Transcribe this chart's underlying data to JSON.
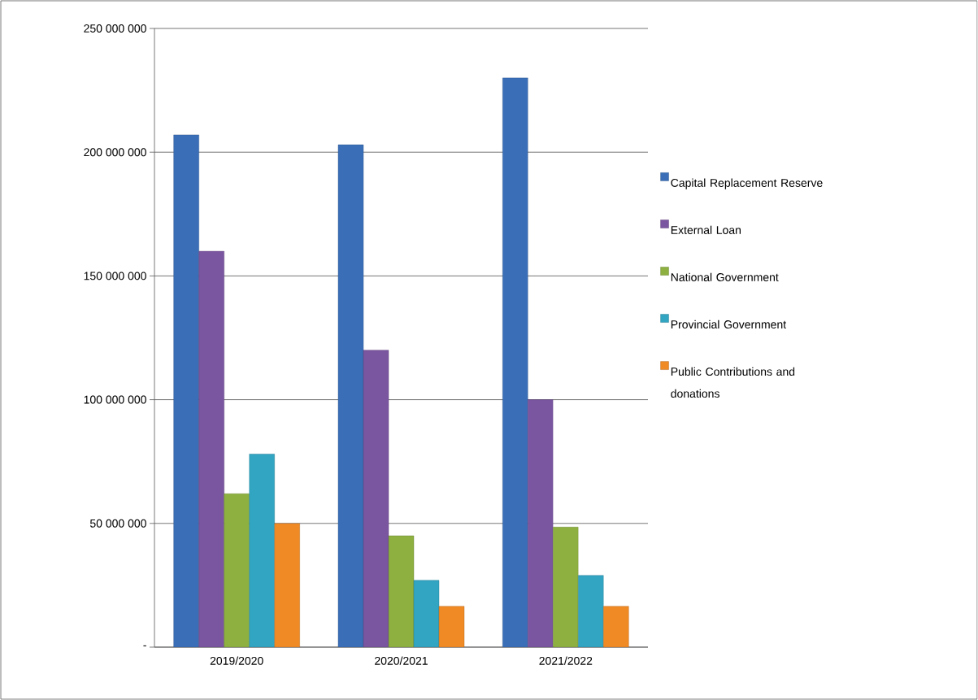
{
  "chart_data": {
    "type": "bar",
    "categories": [
      "2019/2020",
      "2020/2021",
      "2021/2022"
    ],
    "series": [
      {
        "name": "Capital Replacement Reserve",
        "color": "#3a6fb8",
        "values": [
          207000000,
          203000000,
          230000000
        ]
      },
      {
        "name": "External Loan",
        "color": "#7a55a0",
        "values": [
          160000000,
          120000000,
          100000000
        ]
      },
      {
        "name": "National Government",
        "color": "#8db040",
        "values": [
          62000000,
          45000000,
          48500000
        ]
      },
      {
        "name": "Provincial Government",
        "color": "#32a5c2",
        "values": [
          78000000,
          27000000,
          29000000
        ]
      },
      {
        "name": "Public Contributions and donations",
        "color": "#f08a24",
        "values": [
          50000000,
          16500000,
          16500000
        ]
      }
    ],
    "ylim": [
      0,
      250000000
    ],
    "yticks": [
      {
        "value": 0,
        "label": "-"
      },
      {
        "value": 50000000,
        "label": "50 000 000"
      },
      {
        "value": 100000000,
        "label": "100 000 000"
      },
      {
        "value": 150000000,
        "label": "150 000 000"
      },
      {
        "value": 200000000,
        "label": "200 000 000"
      },
      {
        "value": 250000000,
        "label": "250 000 000"
      }
    ],
    "grid": "y",
    "legend": "right"
  }
}
